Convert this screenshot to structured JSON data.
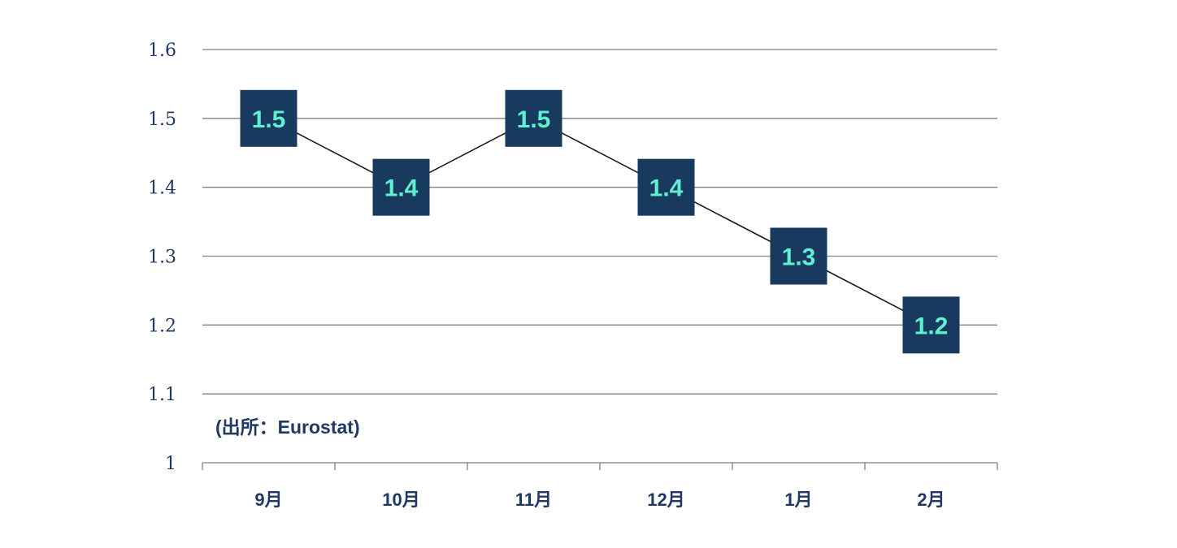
{
  "chart_data": {
    "type": "line",
    "categories": [
      "9月",
      "10月",
      "11月",
      "12月",
      "1月",
      "2月"
    ],
    "values": [
      1.5,
      1.4,
      1.5,
      1.4,
      1.3,
      1.2
    ],
    "data_labels": [
      "1.5",
      "1.4",
      "1.5",
      "1.4",
      "1.3",
      "1.2"
    ],
    "y_ticks": [
      "1",
      "1.1",
      "1.2",
      "1.3",
      "1.4",
      "1.5",
      "1.6"
    ],
    "ylim": [
      1,
      1.6
    ],
    "grid": true,
    "source_note": "(出所：Eurostat)",
    "title": "",
    "xlabel": "",
    "ylabel": "",
    "colors": {
      "marker_fill": "#173a5e",
      "label_text": "#5ef0cf",
      "axis_text": "#1f3864",
      "gridline": "#7f7f7f",
      "line": "#1a1a1a"
    }
  }
}
